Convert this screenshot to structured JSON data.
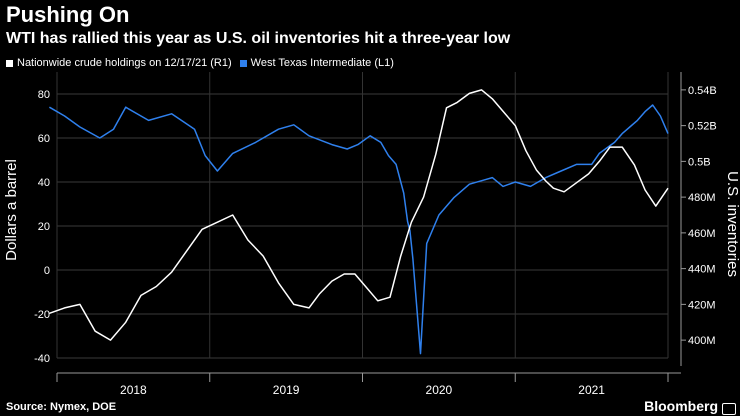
{
  "title": "Pushing On",
  "subtitle": "WTI has rallied this year as U.S. oil inventories hit a three-year low",
  "legend": [
    {
      "label": "Nationwide crude holdings on 12/17/21 (R1)",
      "color": "#ffffff"
    },
    {
      "label": "West Texas Intermediate (L1)",
      "color": "#2f80ed"
    }
  ],
  "source": "Source: Nymex, DOE",
  "brand": "Bloomberg",
  "chart_data": {
    "type": "line",
    "title": "Pushing On",
    "subtitle": "WTI has rallied this year as U.S. oil inventories hit a three-year low",
    "xlabel": "",
    "x_ticks": [
      "2018",
      "2019",
      "2020",
      "2021"
    ],
    "x_range": [
      2018.0,
      2022.0
    ],
    "left_axis": {
      "label": "Dollars a barrel",
      "ylim": [
        -40,
        90
      ],
      "ticks": [
        80,
        60,
        40,
        20,
        0,
        -20,
        -40
      ],
      "tick_labels": [
        "80",
        "60",
        "40",
        "20",
        "0",
        "-20",
        "-40"
      ]
    },
    "right_axis": {
      "label": "U.S. inventories",
      "ylim": [
        390,
        550
      ],
      "ticks": [
        540,
        520,
        500,
        480,
        460,
        440,
        420,
        400
      ],
      "tick_labels": [
        "0.54B",
        "0.52B",
        "0.5B",
        "480M",
        "460M",
        "440M",
        "420M",
        "400M"
      ]
    },
    "series": [
      {
        "name": "West Texas Intermediate (L1)",
        "axis": "left",
        "color": "#2f80ed",
        "x": [
          2017.95,
          2018.05,
          2018.15,
          2018.28,
          2018.37,
          2018.45,
          2018.6,
          2018.75,
          2018.9,
          2018.97,
          2019.05,
          2019.15,
          2019.3,
          2019.45,
          2019.55,
          2019.65,
          2019.8,
          2019.9,
          2019.97,
          2020.05,
          2020.12,
          2020.17,
          2020.22,
          2020.27,
          2020.295,
          2020.31,
          2020.33,
          2020.38,
          2020.42,
          2020.5,
          2020.6,
          2020.7,
          2020.8,
          2020.85,
          2020.92,
          2021.0,
          2021.1,
          2021.2,
          2021.3,
          2021.4,
          2021.5,
          2021.55,
          2021.65,
          2021.7,
          2021.75,
          2021.8,
          2021.85,
          2021.9,
          2021.95,
          2022.0
        ],
        "y": [
          74,
          70,
          65,
          60,
          64,
          74,
          68,
          71,
          64,
          52,
          45,
          53,
          58,
          64,
          66,
          61,
          57,
          55,
          57,
          61,
          58,
          52,
          48,
          35,
          22,
          18,
          5,
          -38,
          12,
          25,
          33,
          39,
          41,
          42,
          38,
          40,
          38,
          42,
          45,
          48,
          48,
          53,
          58,
          62,
          65,
          68,
          72,
          75,
          70,
          62
        ]
      },
      {
        "name": "Nationwide crude holdings on 12/17/21 (R1)",
        "axis": "right",
        "color": "#ffffff",
        "x": [
          2017.95,
          2018.05,
          2018.15,
          2018.25,
          2018.35,
          2018.45,
          2018.55,
          2018.65,
          2018.75,
          2018.85,
          2018.95,
          2019.05,
          2019.15,
          2019.25,
          2019.35,
          2019.45,
          2019.55,
          2019.65,
          2019.72,
          2019.8,
          2019.88,
          2019.95,
          2020.02,
          2020.1,
          2020.18,
          2020.25,
          2020.32,
          2020.4,
          2020.48,
          2020.55,
          2020.62,
          2020.7,
          2020.78,
          2020.85,
          2020.92,
          2021.0,
          2021.07,
          2021.14,
          2021.2,
          2021.25,
          2021.32,
          2021.4,
          2021.48,
          2021.55,
          2021.62,
          2021.7,
          2021.78,
          2021.85,
          2021.92,
          2022.0
        ],
        "y": [
          415,
          418,
          420,
          405,
          400,
          410,
          425,
          430,
          438,
          450,
          462,
          466,
          470,
          456,
          447,
          432,
          420,
          418,
          426,
          433,
          437,
          437,
          430,
          422,
          424,
          447,
          466,
          480,
          504,
          530,
          533,
          538,
          540,
          535,
          528,
          520,
          506,
          495,
          489,
          485,
          483,
          488,
          493,
          500,
          508,
          508,
          498,
          484,
          475,
          485
        ]
      }
    ]
  }
}
